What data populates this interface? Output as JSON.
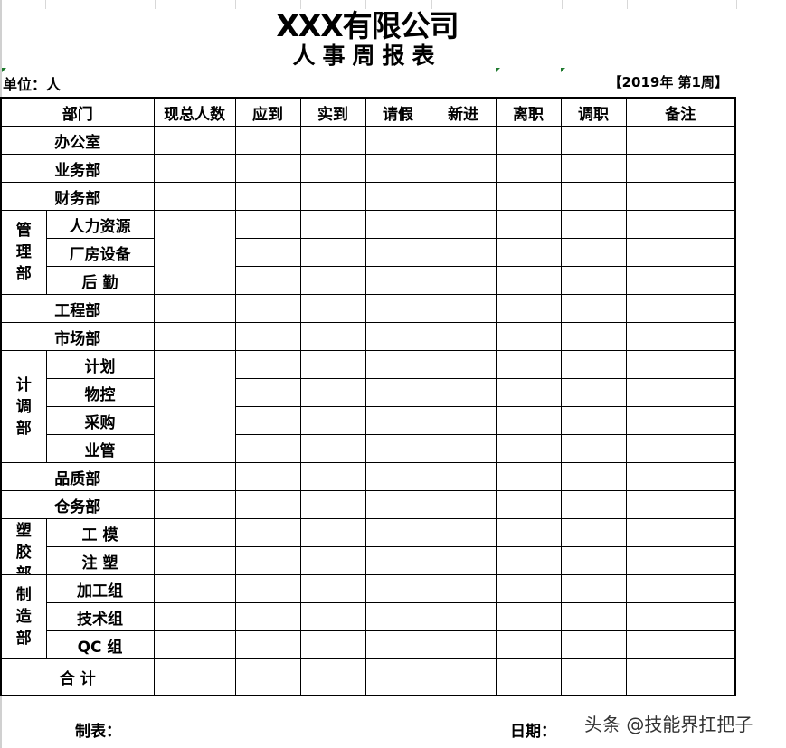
{
  "title": "XXX有限公司",
  "subtitle": "人事周报表",
  "unit": "单位：人",
  "week": "【2019年  第1周】",
  "headers": [
    "部门",
    "现总人数",
    "应到",
    "实到",
    "请假",
    "新进",
    "离职",
    "调职",
    "备注"
  ],
  "groups": [
    {
      "name": "办公室",
      "subs": []
    },
    {
      "name": "业务部",
      "subs": []
    },
    {
      "name": "财务部",
      "subs": []
    },
    {
      "name": "管理部",
      "subs": [
        "人力资源",
        "厂房设备",
        "后 勤"
      ],
      "merged_total": true
    },
    {
      "name": "工程部",
      "subs": []
    },
    {
      "name": "市场部",
      "subs": []
    },
    {
      "name": "计调部",
      "subs": [
        "计划",
        "物控",
        "采购",
        "业管"
      ],
      "merged_total": true
    },
    {
      "name": "品质部",
      "subs": []
    },
    {
      "name": "仓务部",
      "subs": []
    },
    {
      "name": "塑胶部",
      "subs": [
        "工 模",
        "注 塑"
      ],
      "merged_total": false
    },
    {
      "name": "制造部",
      "subs": [
        "加工组",
        "技术组",
        "QC 组"
      ],
      "merged_total": false
    }
  ],
  "total_label": "合  计",
  "footer": {
    "maker": "制表：",
    "date": "日期："
  },
  "watermark": "头条 @技能界扛把子"
}
